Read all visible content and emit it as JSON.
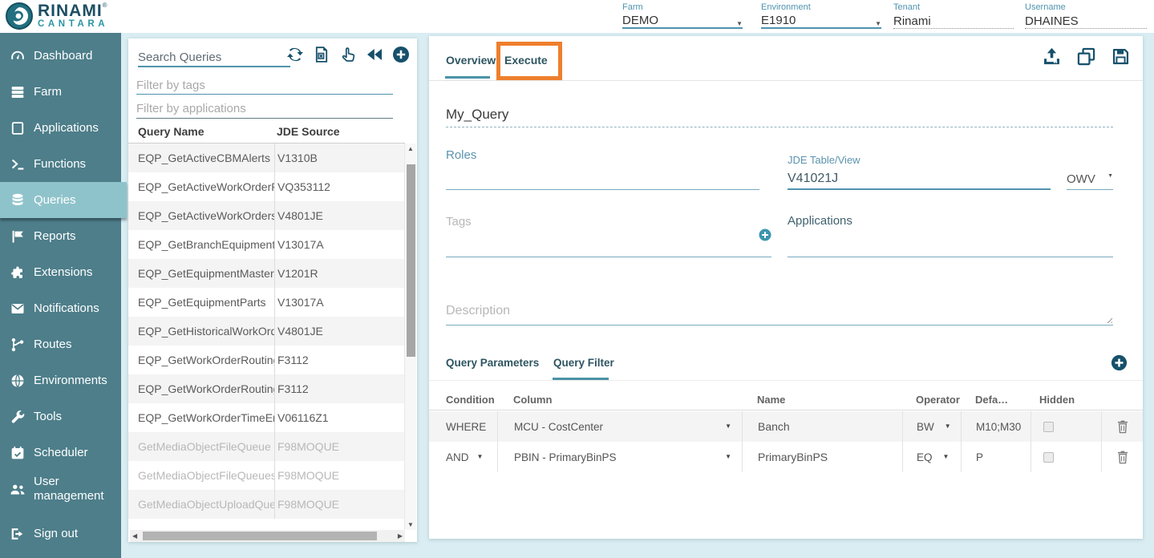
{
  "colors": {
    "sidebar": "#4d7e8a",
    "sidebar_active": "#8fc3cb",
    "accent_teal": "#4f93af",
    "icon_navy": "#16506b",
    "page_bg": "#d9edf2",
    "annotation_orange": "#ee7f2d",
    "row_alt": "#f4f4f4",
    "disabled_text": "#b8b8b8"
  },
  "header": {
    "logo": {
      "title": "RINAMI",
      "reg": "®",
      "subtitle": "CANTARA"
    },
    "fields": [
      {
        "label": "Farm",
        "value": "DEMO",
        "type": "select"
      },
      {
        "label": "Environment",
        "value": "E1910",
        "type": "select"
      },
      {
        "label": "Tenant",
        "value": "Rinami",
        "type": "text"
      },
      {
        "label": "Username",
        "value": "DHAINES",
        "type": "text"
      }
    ]
  },
  "sidebar": {
    "items": [
      {
        "label": "Dashboard",
        "icon": "dashboard-icon"
      },
      {
        "label": "Farm",
        "icon": "farm-icon"
      },
      {
        "label": "Applications",
        "icon": "applications-icon"
      },
      {
        "label": "Functions",
        "icon": "functions-icon"
      },
      {
        "label": "Queries",
        "icon": "queries-icon",
        "active": true
      },
      {
        "label": "Reports",
        "icon": "reports-icon"
      },
      {
        "label": "Extensions",
        "icon": "extensions-icon"
      },
      {
        "label": "Notifications",
        "icon": "notifications-icon"
      },
      {
        "label": "Routes",
        "icon": "routes-icon"
      },
      {
        "label": "Environments",
        "icon": "environments-icon"
      },
      {
        "label": "Tools",
        "icon": "tools-icon"
      },
      {
        "label": "Scheduler",
        "icon": "scheduler-icon"
      },
      {
        "label": "User management",
        "icon": "user-management-icon"
      },
      {
        "label": "Sign out",
        "icon": "sign-out-icon",
        "signout": true
      }
    ]
  },
  "query_list": {
    "search_placeholder": "Search Queries",
    "filter_tags_placeholder": "Filter by tags",
    "filter_apps_placeholder": "Filter by applications",
    "toolbar_icons": [
      "sync-icon",
      "excel-export-icon",
      "hand-select-icon",
      "rewind-icon",
      "add-query-icon"
    ],
    "columns": [
      "Query Name",
      "JDE Source"
    ],
    "rows": [
      {
        "name": "EQP_GetActiveCBMAlerts",
        "source": "V1310B",
        "disabled": false
      },
      {
        "name": "EQP_GetActiveWorkOrderR",
        "source": "VQ353112",
        "disabled": false
      },
      {
        "name": "EQP_GetActiveWorkOrders",
        "source": "V4801JE",
        "disabled": false
      },
      {
        "name": "EQP_GetBranchEquipment",
        "source": "V13017A",
        "disabled": false
      },
      {
        "name": "EQP_GetEquipmentMaster",
        "source": "V1201R",
        "disabled": false
      },
      {
        "name": "EQP_GetEquipmentParts",
        "source": "V13017A",
        "disabled": false
      },
      {
        "name": "EQP_GetHistoricalWorkOrd",
        "source": "V4801JE",
        "disabled": false
      },
      {
        "name": "EQP_GetWorkOrderRouting",
        "source": "F3112",
        "disabled": false
      },
      {
        "name": "EQP_GetWorkOrderRouting",
        "source": "F3112",
        "disabled": false
      },
      {
        "name": "EQP_GetWorkOrderTimeEn",
        "source": "V06116Z1",
        "disabled": false
      },
      {
        "name": "GetMediaObjectFileQueue",
        "source": "F98MOQUE",
        "disabled": true
      },
      {
        "name": "GetMediaObjectFileQueues",
        "source": "F98MOQUE",
        "disabled": true
      },
      {
        "name": "GetMediaObjectUploadQue",
        "source": "F98MOQUE",
        "disabled": true
      }
    ]
  },
  "editor": {
    "tabs": [
      {
        "label": "Overview",
        "active": true
      },
      {
        "label": "Execute",
        "active": false,
        "annotated": true
      }
    ],
    "toolbar_icons": [
      "upload-icon",
      "copy-icon",
      "save-icon"
    ],
    "name_value": "My_Query",
    "roles_label": "Roles",
    "jde_label": "JDE Table/View",
    "jde_value": "V41021J",
    "owv_label": "OWV",
    "tags_placeholder": "Tags",
    "applications_label": "Applications",
    "description_placeholder": "Description",
    "sub_tabs": [
      {
        "label": "Query Parameters",
        "active": false
      },
      {
        "label": "Query Filter",
        "active": true
      }
    ],
    "filter_table": {
      "columns": [
        "Condition",
        "Column",
        "Name",
        "Operator",
        "Defa…",
        "Hidden"
      ],
      "rows": [
        {
          "condition": "WHERE",
          "condition_dropdown": false,
          "column": "MCU - CostCenter",
          "name": "Banch",
          "operator": "BW",
          "default": "M10;M30",
          "hidden": false
        },
        {
          "condition": "AND",
          "condition_dropdown": true,
          "column": "PBIN - PrimaryBinPS",
          "name": "PrimaryBinPS",
          "operator": "EQ",
          "default": "P",
          "hidden": false
        }
      ]
    }
  }
}
